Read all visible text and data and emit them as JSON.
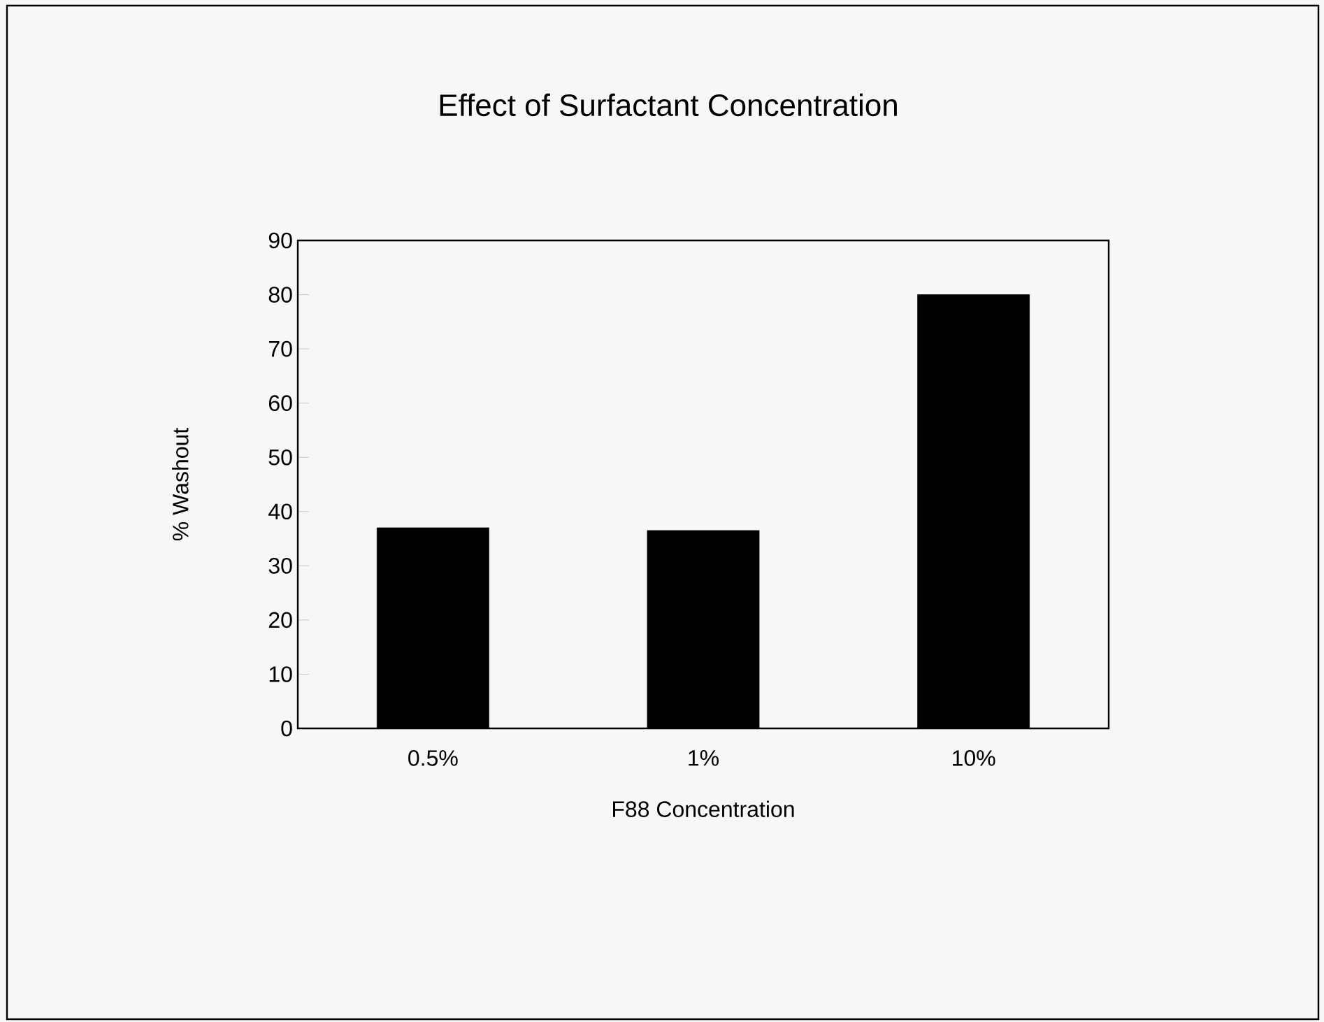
{
  "chart_data": {
    "type": "bar",
    "title": "Effect of Surfactant Concentration",
    "xlabel": "F88 Concentration",
    "ylabel": "% Washout",
    "categories": [
      "0.5%",
      "1%",
      "10%"
    ],
    "values": [
      37,
      36.5,
      80
    ],
    "color": "#000000",
    "ylim": [
      0,
      90
    ],
    "yticks": [
      0,
      10,
      20,
      30,
      40,
      50,
      60,
      70,
      80,
      90
    ],
    "grid": false
  }
}
